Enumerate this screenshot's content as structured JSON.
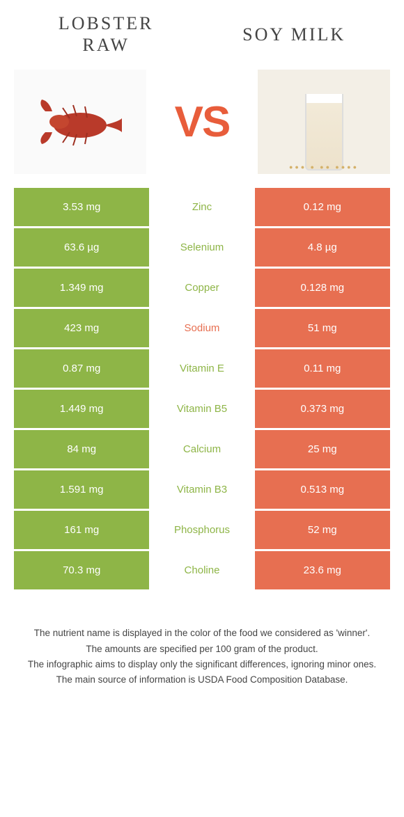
{
  "colors": {
    "green": "#8eb547",
    "orange": "#e76f51",
    "vs": "#e85d3b",
    "text": "#444444"
  },
  "header": {
    "left_title": "LOBSTER\nRAW",
    "right_title": "SOY MILK"
  },
  "vs_label": "VS",
  "rows": [
    {
      "left": "3.53 mg",
      "nutrient": "Zinc",
      "right": "0.12 mg",
      "winner": "left"
    },
    {
      "left": "63.6 µg",
      "nutrient": "Selenium",
      "right": "4.8 µg",
      "winner": "left"
    },
    {
      "left": "1.349 mg",
      "nutrient": "Copper",
      "right": "0.128 mg",
      "winner": "left"
    },
    {
      "left": "423 mg",
      "nutrient": "Sodium",
      "right": "51 mg",
      "winner": "right"
    },
    {
      "left": "0.87 mg",
      "nutrient": "Vitamin E",
      "right": "0.11 mg",
      "winner": "left"
    },
    {
      "left": "1.449 mg",
      "nutrient": "Vitamin B5",
      "right": "0.373 mg",
      "winner": "left"
    },
    {
      "left": "84 mg",
      "nutrient": "Calcium",
      "right": "25 mg",
      "winner": "left"
    },
    {
      "left": "1.591 mg",
      "nutrient": "Vitamin B3",
      "right": "0.513 mg",
      "winner": "left"
    },
    {
      "left": "161 mg",
      "nutrient": "Phosphorus",
      "right": "52 mg",
      "winner": "left"
    },
    {
      "left": "70.3 mg",
      "nutrient": "Choline",
      "right": "23.6 mg",
      "winner": "left"
    }
  ],
  "footer": {
    "line1": "The nutrient name is displayed in the color of the food we considered as 'winner'.",
    "line2": "The amounts are specified per 100 gram of the product.",
    "line3": "The infographic aims to display only the significant differences, ignoring minor ones.",
    "line4": "The main source of information is USDA Food Composition Database."
  }
}
